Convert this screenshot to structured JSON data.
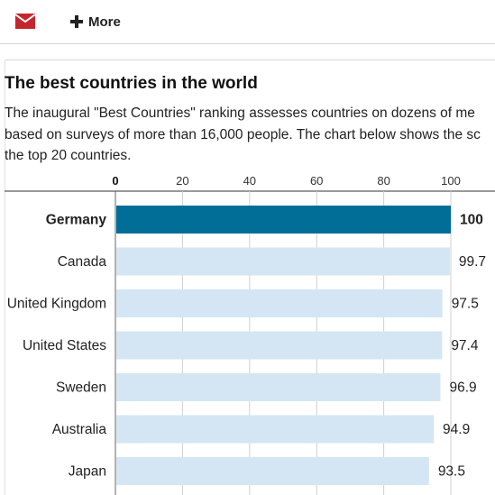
{
  "toolbar": {
    "mail_icon": "envelope-icon",
    "more_label": "More",
    "more_icon": "plus-icon",
    "accent_color": "#c4262e"
  },
  "article": {
    "title": "The best countries in the world",
    "desc_lines": [
      "The inaugural \"Best Countries\" ranking assesses countries on dozens of me",
      "based on surveys of more than 16,000 people. The chart below shows the sc",
      "the top 20 countries."
    ]
  },
  "chart_data": {
    "type": "bar",
    "orientation": "horizontal",
    "categories": [
      "Germany",
      "Canada",
      "United Kingdom",
      "United States",
      "Sweden",
      "Australia",
      "Japan"
    ],
    "values": [
      100,
      99.7,
      97.5,
      97.4,
      96.9,
      94.9,
      93.5
    ],
    "value_labels": [
      "100",
      "99.7",
      "97.5",
      "97.4",
      "96.9",
      "94.9",
      "93.5"
    ],
    "ticks": [
      "0",
      "20",
      "40",
      "60",
      "80",
      "100"
    ],
    "xlim": [
      0,
      100
    ],
    "grid": true,
    "highlight_index": 0,
    "highlight_color": "#006e96",
    "bar_color": "#d4e6f3"
  }
}
